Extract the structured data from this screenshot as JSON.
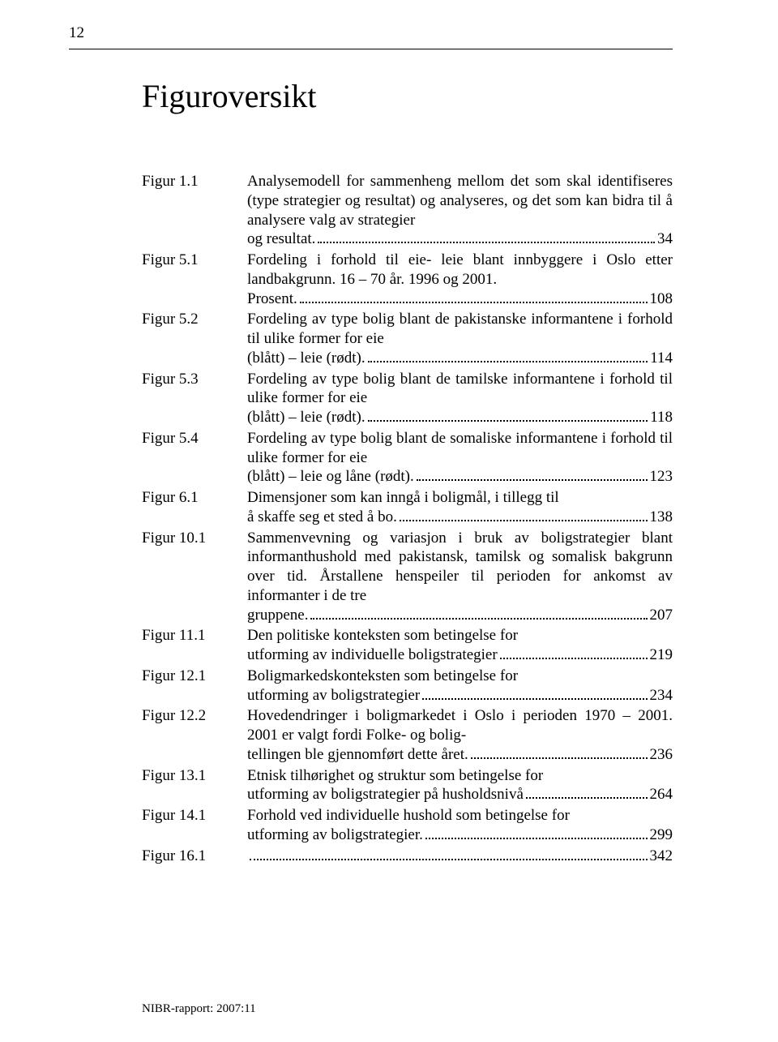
{
  "page_number_top": "12",
  "title": "Figuroversikt",
  "footer": "NIBR-rapport: 2007:11",
  "entries": [
    {
      "label": "Figur 1.1",
      "pre_lines": [
        "Analysemodell for sammenheng mellom det som skal identifiseres (type strategier og resultat) og analyseres, og det som kan bidra til å analysere valg av strategier"
      ],
      "last_line": "og resultat.",
      "page": "34"
    },
    {
      "label": "Figur 5.1",
      "pre_lines": [
        "Fordeling i forhold til eie- leie blant innbyggere i Oslo etter landbakgrunn. 16 – 70 år. 1996 og 2001."
      ],
      "last_line": "Prosent.",
      "page": "108"
    },
    {
      "label": "Figur 5.2",
      "pre_lines": [
        "Fordeling av type bolig blant de pakistanske informantene i forhold til ulike former for eie"
      ],
      "last_line": "(blått) – leie (rødt).",
      "page": "114"
    },
    {
      "label": "Figur 5.3",
      "pre_lines": [
        "Fordeling av type bolig blant de tamilske informantene i forhold til ulike former for eie"
      ],
      "last_line": "(blått) – leie (rødt).",
      "page": "118"
    },
    {
      "label": "Figur 5.4",
      "pre_lines": [
        "Fordeling av type bolig blant de somaliske informantene i forhold til ulike former for eie"
      ],
      "last_line": "(blått) – leie og låne (rødt).",
      "page": "123"
    },
    {
      "label": "Figur 6.1",
      "pre_lines": [
        "Dimensjoner som kan inngå i boligmål, i tillegg til"
      ],
      "last_line": "å skaffe seg et sted å bo.",
      "page": "138"
    },
    {
      "label": "Figur 10.1",
      "pre_lines": [
        "Sammenvevning og variasjon i bruk av boligstrategier blant informanthushold med pakistansk, tamilsk og somalisk bakgrunn over tid. Årstallene henspeiler til perioden for ankomst av informanter i de tre"
      ],
      "last_line": "gruppene.",
      "page": "207"
    },
    {
      "label": "Figur 11.1",
      "pre_lines": [
        "Den politiske konteksten som betingelse for"
      ],
      "last_line": "utforming av individuelle boligstrategier",
      "page": "219"
    },
    {
      "label": "Figur 12.1",
      "pre_lines": [
        "Boligmarkedskonteksten som betingelse for"
      ],
      "last_line": "utforming av boligstrategier",
      "page": "234"
    },
    {
      "label": "Figur 12.2",
      "pre_lines": [
        "Hovedendringer i boligmarkedet i Oslo i perioden 1970 – 2001. 2001 er valgt fordi Folke- og bolig-"
      ],
      "last_line": "tellingen ble gjennomført dette året.",
      "page": "236"
    },
    {
      "label": "Figur 13.1",
      "pre_lines": [
        "Etnisk tilhørighet og struktur som betingelse for"
      ],
      "last_line": "utforming av boligstrategier på husholdsnivå",
      "page": "264"
    },
    {
      "label": "Figur 14.1",
      "pre_lines": [
        "Forhold ved individuelle hushold som betingelse for"
      ],
      "last_line": "utforming av boligstrategier.",
      "page": "299"
    },
    {
      "label": "Figur 16.1",
      "pre_lines": [],
      "last_line": "",
      "page": "342"
    }
  ]
}
